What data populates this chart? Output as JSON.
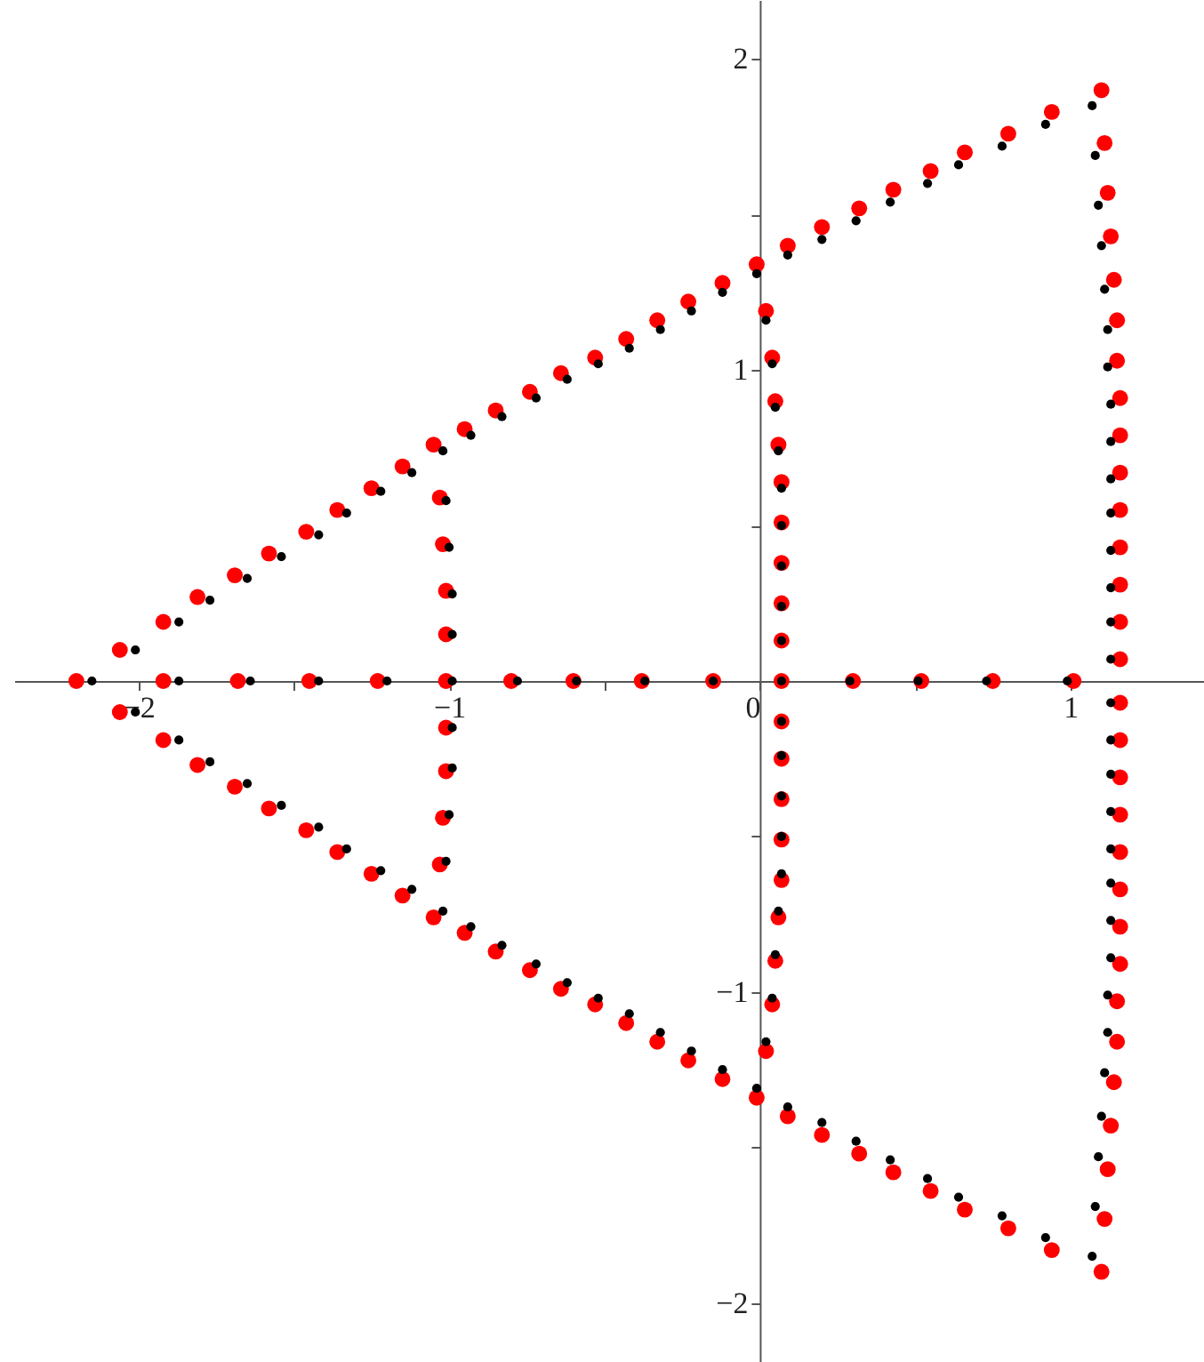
{
  "chart_data": {
    "type": "scatter",
    "marker": "circle",
    "grid": false,
    "xlim": [
      -2.4,
      1.43
    ],
    "ylim": [
      -2.19,
      2.19
    ],
    "xticks": [
      {
        "value": -2,
        "label": "−2"
      },
      {
        "value": -1.5,
        "label": null
      },
      {
        "value": -1,
        "label": "−1"
      },
      {
        "value": -0.5,
        "label": null
      },
      0,
      {
        "value": 0.5,
        "label": null
      },
      1
    ],
    "yticks": [
      {
        "value": -2,
        "label": "−2"
      },
      {
        "value": -1.5,
        "label": null
      },
      {
        "value": -1,
        "label": "−1"
      },
      {
        "value": -0.5,
        "label": null
      },
      {
        "value": 0.5,
        "label": null
      },
      1,
      {
        "value": 1.5,
        "label": null
      },
      2
    ],
    "series": [
      {
        "color": "#ff0000",
        "x": [
          -2.2,
          -2.06,
          -1.92,
          -1.81,
          -1.69,
          -1.58,
          -1.46,
          -1.36,
          -1.25,
          -1.15,
          -1.05,
          -0.95,
          -0.85,
          -0.74,
          -0.64,
          -0.53,
          -0.43,
          -0.33,
          -0.23,
          -0.12,
          -0.01,
          0.09,
          0.2,
          0.32,
          0.43,
          0.55,
          0.66,
          0.8,
          0.94,
          1.1,
          -2.06,
          -1.92,
          -1.81,
          -1.69,
          -1.58,
          -1.46,
          -1.36,
          -1.25,
          -1.15,
          -1.05,
          -0.95,
          -0.85,
          -0.74,
          -0.64,
          -0.53,
          -0.43,
          -0.33,
          -0.23,
          -0.12,
          -0.01,
          0.09,
          0.2,
          0.32,
          0.43,
          0.55,
          0.66,
          0.8,
          0.94,
          1.1,
          1.11,
          1.12,
          1.13,
          1.14,
          1.15,
          1.15,
          1.16,
          1.16,
          1.16,
          1.16,
          1.16,
          1.16,
          1.16,
          1.16,
          1.11,
          1.12,
          1.13,
          1.14,
          1.15,
          1.15,
          1.16,
          1.16,
          1.16,
          1.16,
          1.16,
          1.16,
          1.16,
          1.16,
          -1.92,
          -1.68,
          -1.45,
          -1.23,
          -1.01,
          -0.8,
          -0.6,
          -0.38,
          -0.15,
          0.07,
          0.3,
          0.52,
          0.75,
          1.01,
          0.02,
          0.04,
          0.05,
          0.06,
          0.07,
          0.07,
          0.07,
          0.07,
          0.07,
          0.02,
          0.04,
          0.05,
          0.06,
          0.07,
          0.07,
          0.07,
          0.07,
          0.07,
          -1.03,
          -1.02,
          -1.01,
          -1.01,
          -1.03,
          -1.02,
          -1.01,
          -1.01
        ],
        "values": [
          0,
          0.1,
          0.19,
          0.27,
          0.34,
          0.41,
          0.48,
          0.55,
          0.62,
          0.69,
          0.76,
          0.81,
          0.87,
          0.93,
          0.99,
          1.04,
          1.1,
          1.16,
          1.22,
          1.28,
          1.34,
          1.4,
          1.46,
          1.52,
          1.58,
          1.64,
          1.7,
          1.76,
          1.83,
          1.9,
          -0.1,
          -0.19,
          -0.27,
          -0.34,
          -0.41,
          -0.48,
          -0.55,
          -0.62,
          -0.69,
          -0.76,
          -0.81,
          -0.87,
          -0.93,
          -0.99,
          -1.04,
          -1.1,
          -1.16,
          -1.22,
          -1.28,
          -1.34,
          -1.4,
          -1.46,
          -1.52,
          -1.58,
          -1.64,
          -1.7,
          -1.76,
          -1.83,
          -1.9,
          1.73,
          1.57,
          1.43,
          1.29,
          1.16,
          1.03,
          0.91,
          0.79,
          0.67,
          0.55,
          0.43,
          0.31,
          0.19,
          0.07,
          -1.73,
          -1.57,
          -1.43,
          -1.29,
          -1.16,
          -1.03,
          -0.91,
          -0.79,
          -0.67,
          -0.55,
          -0.43,
          -0.31,
          -0.19,
          -0.07,
          0,
          0,
          0,
          0,
          0,
          0,
          0,
          0,
          0,
          0,
          0,
          0,
          0,
          0,
          1.19,
          1.04,
          0.9,
          0.76,
          0.64,
          0.51,
          0.38,
          0.25,
          0.13,
          -1.19,
          -1.04,
          -0.9,
          -0.76,
          -0.64,
          -0.51,
          -0.38,
          -0.25,
          -0.13,
          0.59,
          0.44,
          0.29,
          0.15,
          -0.59,
          -0.44,
          -0.29,
          -0.15
        ]
      },
      {
        "color": "#000000",
        "x": [
          -2.15,
          -2.01,
          -1.87,
          -1.77,
          -1.65,
          -1.54,
          -1.42,
          -1.33,
          -1.22,
          -1.12,
          -1.02,
          -0.93,
          -0.83,
          -0.72,
          -0.62,
          -0.52,
          -0.42,
          -0.32,
          -0.22,
          -0.12,
          -0.01,
          0.09,
          0.2,
          0.31,
          0.42,
          0.54,
          0.64,
          0.78,
          0.92,
          1.07,
          -2.01,
          -1.87,
          -1.77,
          -1.65,
          -1.54,
          -1.42,
          -1.33,
          -1.22,
          -1.12,
          -1.02,
          -0.93,
          -0.83,
          -0.72,
          -0.62,
          -0.52,
          -0.42,
          -0.32,
          -0.22,
          -0.12,
          -0.01,
          0.09,
          0.2,
          0.31,
          0.42,
          0.54,
          0.64,
          0.78,
          0.92,
          1.07,
          1.08,
          1.09,
          1.1,
          1.11,
          1.12,
          1.12,
          1.13,
          1.13,
          1.13,
          1.13,
          1.13,
          1.13,
          1.13,
          1.13,
          1.08,
          1.09,
          1.1,
          1.11,
          1.12,
          1.12,
          1.13,
          1.13,
          1.13,
          1.13,
          1.13,
          1.13,
          1.13,
          1.13,
          -1.87,
          -1.64,
          -1.42,
          -1.2,
          -0.99,
          -0.78,
          -0.59,
          -0.37,
          -0.15,
          0.07,
          0.29,
          0.51,
          0.73,
          0.99,
          0.02,
          0.04,
          0.05,
          0.06,
          0.07,
          0.07,
          0.07,
          0.07,
          0.07,
          0.02,
          0.04,
          0.05,
          0.06,
          0.07,
          0.07,
          0.07,
          0.07,
          0.07,
          -1.01,
          -1.0,
          -0.99,
          -0.99,
          -1.01,
          -1.0,
          -0.99,
          -0.99
        ],
        "values": [
          0,
          0.1,
          0.19,
          0.26,
          0.33,
          0.4,
          0.47,
          0.54,
          0.61,
          0.67,
          0.74,
          0.79,
          0.85,
          0.91,
          0.97,
          1.02,
          1.07,
          1.13,
          1.19,
          1.25,
          1.31,
          1.37,
          1.42,
          1.48,
          1.54,
          1.6,
          1.66,
          1.72,
          1.79,
          1.85,
          -0.1,
          -0.19,
          -0.26,
          -0.33,
          -0.4,
          -0.47,
          -0.54,
          -0.61,
          -0.67,
          -0.74,
          -0.79,
          -0.85,
          -0.91,
          -0.97,
          -1.02,
          -1.07,
          -1.13,
          -1.19,
          -1.25,
          -1.31,
          -1.37,
          -1.42,
          -1.48,
          -1.54,
          -1.6,
          -1.66,
          -1.72,
          -1.79,
          -1.85,
          1.69,
          1.53,
          1.4,
          1.26,
          1.13,
          1.01,
          0.89,
          0.77,
          0.65,
          0.54,
          0.42,
          0.3,
          0.19,
          0.07,
          -1.69,
          -1.53,
          -1.4,
          -1.26,
          -1.13,
          -1.01,
          -0.89,
          -0.77,
          -0.65,
          -0.54,
          -0.42,
          -0.3,
          -0.19,
          -0.07,
          0,
          0,
          0,
          0,
          0,
          0,
          0,
          0,
          0,
          0,
          0,
          0,
          0,
          0,
          1.16,
          1.02,
          0.88,
          0.74,
          0.62,
          0.5,
          0.37,
          0.24,
          0.13,
          -1.16,
          -1.02,
          -0.88,
          -0.74,
          -0.62,
          -0.5,
          -0.37,
          -0.24,
          -0.13,
          0.58,
          0.43,
          0.28,
          0.15,
          -0.58,
          -0.43,
          -0.28,
          -0.15
        ]
      }
    ]
  }
}
